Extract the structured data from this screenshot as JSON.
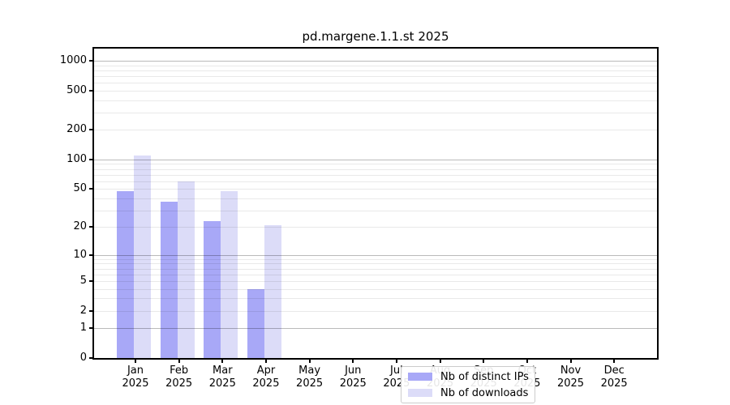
{
  "chart_data": {
    "type": "bar",
    "title": "pd.margene.1.1.st 2025",
    "categories": [
      {
        "month": "Jan",
        "year": "2025"
      },
      {
        "month": "Feb",
        "year": "2025"
      },
      {
        "month": "Mar",
        "year": "2025"
      },
      {
        "month": "Apr",
        "year": "2025"
      },
      {
        "month": "May",
        "year": "2025"
      },
      {
        "month": "Jun",
        "year": "2025"
      },
      {
        "month": "Jul",
        "year": "2025"
      },
      {
        "month": "Aug",
        "year": "2025"
      },
      {
        "month": "Sep",
        "year": "2025"
      },
      {
        "month": "Oct",
        "year": "2025"
      },
      {
        "month": "Nov",
        "year": "2025"
      },
      {
        "month": "Dec",
        "year": "2025"
      }
    ],
    "series": [
      {
        "name": "Nb of distinct IPs",
        "color": "#a8a8f7",
        "values": [
          47,
          37,
          23,
          4,
          null,
          null,
          null,
          null,
          null,
          null,
          null,
          null
        ]
      },
      {
        "name": "Nb of downloads",
        "color": "#dcdcf8",
        "values": [
          110,
          60,
          47,
          21,
          null,
          null,
          null,
          null,
          null,
          null,
          null,
          null
        ]
      }
    ],
    "y_axis": {
      "scale": "log1p",
      "ticks": [
        0,
        1,
        2,
        5,
        10,
        20,
        50,
        100,
        200,
        500,
        1000
      ],
      "major_grid_values": [
        1,
        10,
        100,
        1000
      ],
      "ylim_max_approx": 1300
    },
    "x_axis": {
      "tick_count": 12
    },
    "legend": {
      "position": "lower-center-left"
    },
    "grid": {
      "minor_per_decade": [
        2,
        3,
        4,
        5,
        6,
        7,
        8,
        9
      ],
      "grid_on": true
    }
  },
  "colors": {
    "background": "#ffffff",
    "spine": "#000000",
    "bar_distinct_ips": "#a8a8f7",
    "bar_downloads": "#dcdcf8",
    "legend_border": "#cccccc"
  }
}
